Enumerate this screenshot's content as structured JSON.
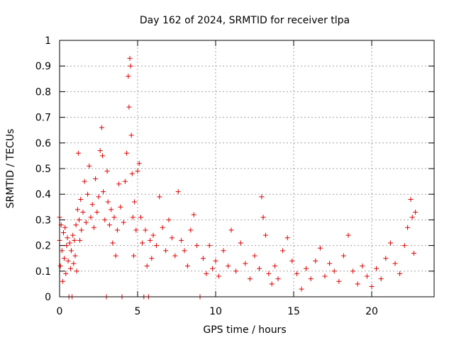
{
  "chart_data": {
    "type": "scatter",
    "title": "Day 162 of 2024, SRMTID for receiver tlpa",
    "xlabel": "GPS time / hours",
    "ylabel": "SRMTID / TECUs",
    "xlim": [
      0,
      24
    ],
    "ylim": [
      0,
      1
    ],
    "x_ticks": [
      0,
      5,
      10,
      15,
      20
    ],
    "y_ticks": [
      0,
      0.1,
      0.2,
      0.3,
      0.4,
      0.5,
      0.6,
      0.7,
      0.8,
      0.9,
      1
    ],
    "x_tick_labels": [
      "0",
      "5",
      "10",
      "15",
      "20"
    ],
    "y_tick_labels": [
      "0",
      "0.1",
      "0.2",
      "0.3",
      "0.4",
      "0.5",
      "0.6",
      "0.7",
      "0.8",
      "0.9",
      "1"
    ],
    "grid": true,
    "marker": "+",
    "marker_color": "#e00000",
    "series": [
      {
        "name": "SRMTID",
        "description": "Approximate envelope of dense plus-marker scatter, 10-minute time bins",
        "points": [
          [
            0.0,
            0.31
          ],
          [
            0.0,
            0.22
          ],
          [
            0.05,
            0.12
          ],
          [
            0.1,
            0.28
          ],
          [
            0.15,
            0.18
          ],
          [
            0.2,
            0.06
          ],
          [
            0.25,
            0.25
          ],
          [
            0.3,
            0.15
          ],
          [
            0.35,
            0.27
          ],
          [
            0.4,
            0.09
          ],
          [
            0.45,
            0.2
          ],
          [
            0.5,
            0.23
          ],
          [
            0.55,
            0.14
          ],
          [
            0.6,
            0.0
          ],
          [
            0.65,
            0.21
          ],
          [
            0.7,
            0.11
          ],
          [
            0.75,
            0.18
          ],
          [
            0.8,
            0.0
          ],
          [
            0.85,
            0.24
          ],
          [
            0.9,
            0.13
          ],
          [
            0.95,
            0.22
          ],
          [
            1.0,
            0.16
          ],
          [
            1.05,
            0.28
          ],
          [
            1.1,
            0.1
          ],
          [
            1.15,
            0.34
          ],
          [
            1.2,
            0.56
          ],
          [
            1.25,
            0.3
          ],
          [
            1.3,
            0.22
          ],
          [
            1.35,
            0.38
          ],
          [
            1.4,
            0.26
          ],
          [
            1.5,
            0.33
          ],
          [
            1.6,
            0.45
          ],
          [
            1.7,
            0.29
          ],
          [
            1.8,
            0.4
          ],
          [
            1.9,
            0.51
          ],
          [
            2.0,
            0.31
          ],
          [
            2.1,
            0.36
          ],
          [
            2.2,
            0.27
          ],
          [
            2.3,
            0.46
          ],
          [
            2.4,
            0.33
          ],
          [
            2.5,
            0.39
          ],
          [
            2.6,
            0.57
          ],
          [
            2.7,
            0.66
          ],
          [
            2.75,
            0.55
          ],
          [
            2.8,
            0.41
          ],
          [
            2.9,
            0.3
          ],
          [
            3.0,
            0.0
          ],
          [
            3.05,
            0.49
          ],
          [
            3.1,
            0.37
          ],
          [
            3.2,
            0.28
          ],
          [
            3.3,
            0.34
          ],
          [
            3.4,
            0.21
          ],
          [
            3.5,
            0.31
          ],
          [
            3.6,
            0.16
          ],
          [
            3.7,
            0.26
          ],
          [
            3.8,
            0.44
          ],
          [
            3.9,
            0.35
          ],
          [
            4.0,
            0.0
          ],
          [
            4.1,
            0.29
          ],
          [
            4.2,
            0.45
          ],
          [
            4.3,
            0.56
          ],
          [
            4.4,
            0.86
          ],
          [
            4.45,
            0.74
          ],
          [
            4.5,
            0.93
          ],
          [
            4.55,
            0.9
          ],
          [
            4.6,
            0.63
          ],
          [
            4.65,
            0.48
          ],
          [
            4.7,
            0.31
          ],
          [
            4.75,
            0.16
          ],
          [
            4.8,
            0.37
          ],
          [
            4.9,
            0.26
          ],
          [
            5.0,
            0.49
          ],
          [
            5.1,
            0.52
          ],
          [
            5.2,
            0.31
          ],
          [
            5.3,
            0.21
          ],
          [
            5.4,
            0.0
          ],
          [
            5.5,
            0.26
          ],
          [
            5.6,
            0.12
          ],
          [
            5.7,
            0.0
          ],
          [
            5.8,
            0.22
          ],
          [
            5.9,
            0.15
          ],
          [
            6.0,
            0.24
          ],
          [
            6.2,
            0.2
          ],
          [
            6.4,
            0.39
          ],
          [
            6.6,
            0.27
          ],
          [
            6.8,
            0.18
          ],
          [
            7.0,
            0.3
          ],
          [
            7.2,
            0.23
          ],
          [
            7.4,
            0.16
          ],
          [
            7.6,
            0.41
          ],
          [
            7.8,
            0.22
          ],
          [
            8.0,
            0.18
          ],
          [
            8.2,
            0.12
          ],
          [
            8.4,
            0.26
          ],
          [
            8.6,
            0.32
          ],
          [
            8.8,
            0.2
          ],
          [
            9.0,
            0.0
          ],
          [
            9.2,
            0.15
          ],
          [
            9.4,
            0.09
          ],
          [
            9.6,
            0.2
          ],
          [
            9.8,
            0.11
          ],
          [
            10.0,
            0.14
          ],
          [
            10.2,
            0.08
          ],
          [
            10.5,
            0.18
          ],
          [
            10.8,
            0.12
          ],
          [
            11.0,
            0.26
          ],
          [
            11.3,
            0.1
          ],
          [
            11.6,
            0.21
          ],
          [
            11.9,
            0.13
          ],
          [
            12.2,
            0.07
          ],
          [
            12.5,
            0.16
          ],
          [
            12.8,
            0.11
          ],
          [
            12.95,
            0.39
          ],
          [
            13.05,
            0.31
          ],
          [
            13.2,
            0.24
          ],
          [
            13.4,
            0.09
          ],
          [
            13.6,
            0.05
          ],
          [
            13.8,
            0.12
          ],
          [
            14.0,
            0.07
          ],
          [
            14.3,
            0.18
          ],
          [
            14.6,
            0.23
          ],
          [
            14.9,
            0.14
          ],
          [
            15.2,
            0.09
          ],
          [
            15.5,
            0.03
          ],
          [
            15.8,
            0.11
          ],
          [
            16.1,
            0.07
          ],
          [
            16.4,
            0.14
          ],
          [
            16.7,
            0.19
          ],
          [
            17.0,
            0.08
          ],
          [
            17.3,
            0.13
          ],
          [
            17.6,
            0.1
          ],
          [
            17.9,
            0.06
          ],
          [
            18.2,
            0.16
          ],
          [
            18.5,
            0.24
          ],
          [
            18.8,
            0.1
          ],
          [
            19.1,
            0.05
          ],
          [
            19.4,
            0.12
          ],
          [
            19.7,
            0.08
          ],
          [
            20.0,
            0.04
          ],
          [
            20.3,
            0.11
          ],
          [
            20.6,
            0.07
          ],
          [
            20.9,
            0.15
          ],
          [
            21.2,
            0.21
          ],
          [
            21.5,
            0.13
          ],
          [
            21.8,
            0.09
          ],
          [
            22.1,
            0.2
          ],
          [
            22.3,
            0.27
          ],
          [
            22.5,
            0.38
          ],
          [
            22.6,
            0.31
          ],
          [
            22.7,
            0.17
          ],
          [
            22.8,
            0.33
          ]
        ]
      }
    ]
  }
}
